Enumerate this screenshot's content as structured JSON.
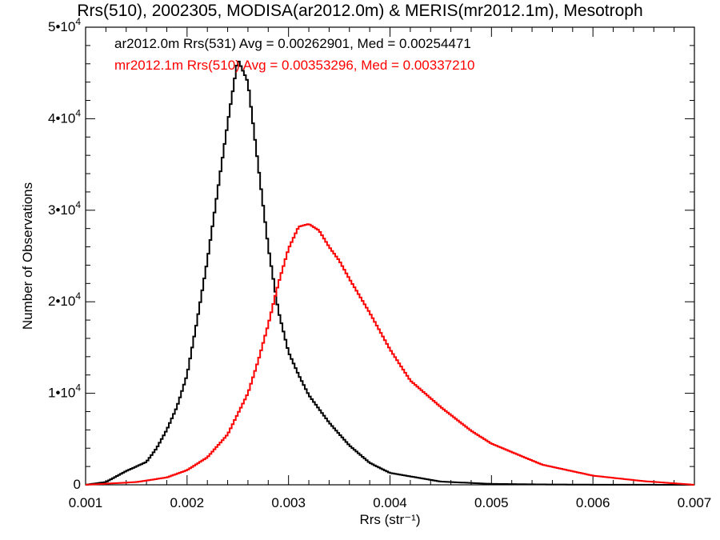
{
  "chart_data": {
    "type": "line",
    "title": "Rrs(510), 2002305, MODISA(ar2012.0m) & MERIS(mr2012.1m), Mesotroph",
    "xlabel": "Rrs (str⁻¹)",
    "ylabel": "Number of Observations",
    "xlim": [
      0.001,
      0.007
    ],
    "ylim": [
      0,
      50000
    ],
    "xticks": [
      0.001,
      0.002,
      0.003,
      0.004,
      0.005,
      0.006,
      0.007
    ],
    "xtick_labels": [
      "0.001",
      "0.002",
      "0.003",
      "0.004",
      "0.005",
      "0.006",
      "0.007"
    ],
    "yticks": [
      0,
      10000,
      20000,
      30000,
      40000,
      50000
    ],
    "ytick_labels": [
      {
        "mant": "0",
        "exp": ""
      },
      {
        "mant": "1•10",
        "exp": "4"
      },
      {
        "mant": "2•10",
        "exp": "4"
      },
      {
        "mant": "3•10",
        "exp": "4"
      },
      {
        "mant": "4•10",
        "exp": "4"
      },
      {
        "mant": "5•10",
        "exp": "4"
      }
    ],
    "grid": false,
    "step": true,
    "legend_placement": "top-left",
    "series": [
      {
        "name": "ar2012.0m Rrs(531) Avg = 0.00262901, Med = 0.00254471",
        "color": "#000000",
        "x": [
          0.001,
          0.0012,
          0.0014,
          0.0016,
          0.0017,
          0.0018,
          0.0019,
          0.002,
          0.0021,
          0.0022,
          0.0023,
          0.0024,
          0.0025,
          0.0026,
          0.0027,
          0.0028,
          0.0029,
          0.003,
          0.0031,
          0.0032,
          0.0034,
          0.0036,
          0.0038,
          0.004,
          0.0045,
          0.005,
          0.0055,
          0.006,
          0.007
        ],
        "y": [
          0,
          300,
          1500,
          2500,
          4000,
          6000,
          8500,
          12000,
          18000,
          24500,
          32000,
          39500,
          46500,
          44000,
          35000,
          26000,
          19000,
          14500,
          12000,
          9800,
          6800,
          4300,
          2400,
          1300,
          350,
          100,
          40,
          15,
          0
        ]
      },
      {
        "name": "mr2012.1m Rrs(510) Avg = 0.00353296, Med = 0.00337210",
        "color": "#ff0000",
        "x": [
          0.001,
          0.0015,
          0.0018,
          0.002,
          0.0022,
          0.0024,
          0.0026,
          0.0027,
          0.0028,
          0.0029,
          0.003,
          0.0031,
          0.0032,
          0.0033,
          0.0034,
          0.0035,
          0.0036,
          0.0038,
          0.004,
          0.0042,
          0.0045,
          0.0048,
          0.005,
          0.0055,
          0.006,
          0.0065,
          0.007
        ],
        "y": [
          0,
          300,
          800,
          1600,
          3000,
          5500,
          10000,
          13500,
          17500,
          22000,
          25800,
          28200,
          28500,
          27800,
          26000,
          24500,
          22500,
          18800,
          14800,
          11400,
          8500,
          5900,
          4500,
          2200,
          1000,
          400,
          0
        ]
      }
    ]
  }
}
